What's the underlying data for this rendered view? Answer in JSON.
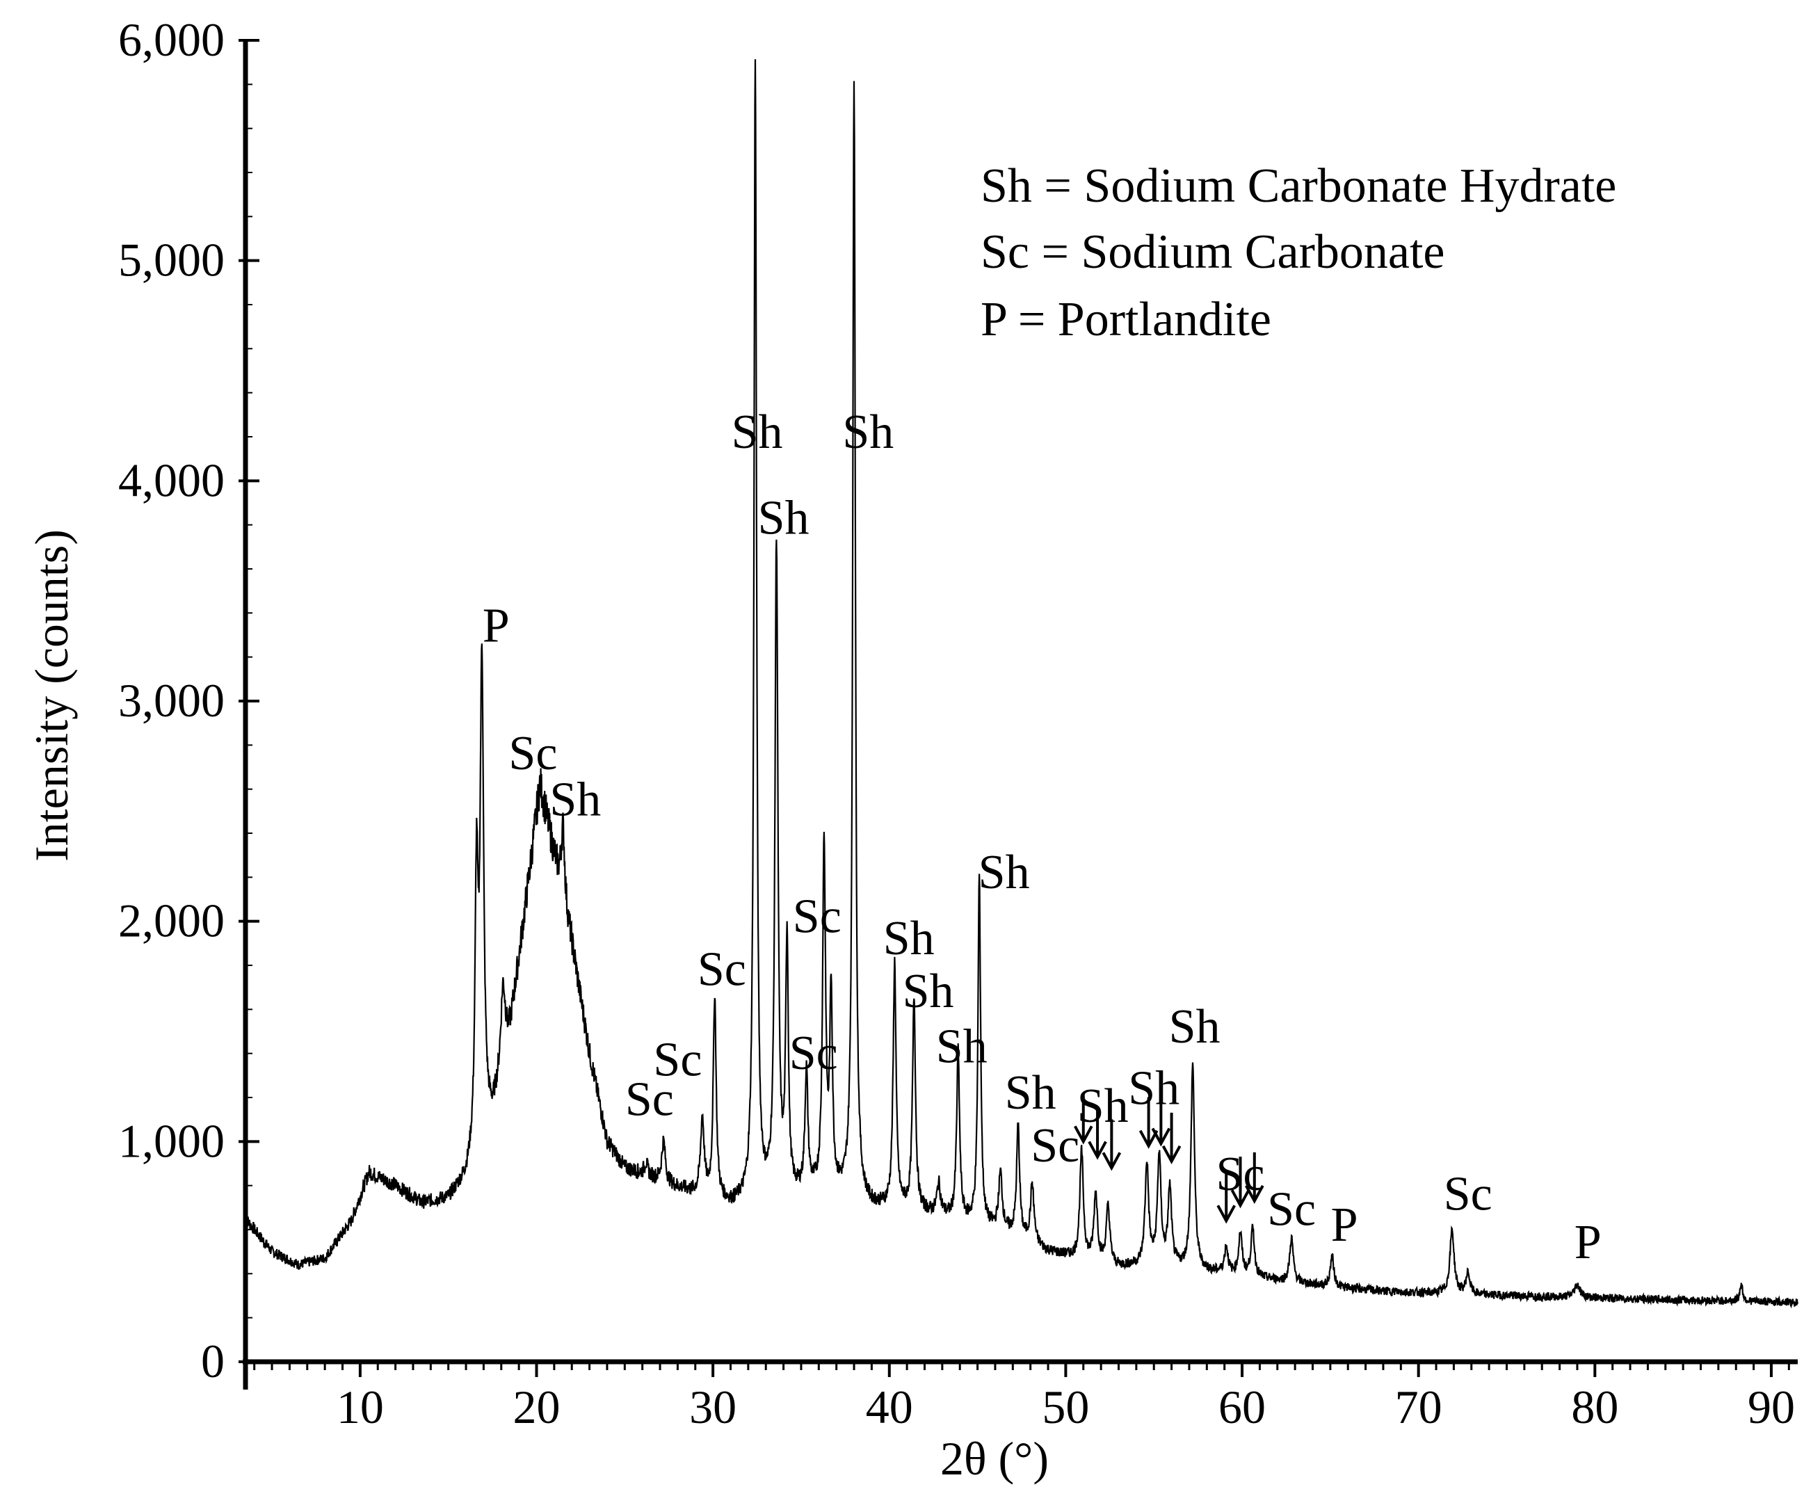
{
  "chart_data": {
    "type": "line",
    "xlabel": "2θ (°)",
    "ylabel": "Intensity (counts)",
    "xlim": [
      3.5,
      91.5
    ],
    "ylim": [
      0,
      6000
    ],
    "x_ticks": [
      10,
      20,
      30,
      40,
      50,
      60,
      70,
      80,
      90
    ],
    "x_tick_labels": [
      "10",
      "20",
      "30",
      "40",
      "50",
      "60",
      "70",
      "80",
      "90"
    ],
    "y_ticks": [
      0,
      1000,
      2000,
      3000,
      4000,
      5000,
      6000
    ],
    "y_tick_labels": [
      "0",
      "1,000",
      "2,000",
      "3,000",
      "4,000",
      "5,000",
      "6,000"
    ],
    "legend_position": "top-right",
    "legend": [
      "Sh = Sodium Carbonate Hydrate",
      "Sc = Sodium Carbonate",
      "P = Portlandite"
    ],
    "baseline": [
      [
        3.5,
        650
      ],
      [
        5,
        500
      ],
      [
        6.5,
        440
      ],
      [
        8,
        470
      ],
      [
        9.5,
        640
      ],
      [
        10.5,
        860
      ],
      [
        12,
        800
      ],
      [
        13.5,
        720
      ],
      [
        15,
        740
      ],
      [
        16,
        830
      ],
      [
        17.5,
        1100
      ],
      [
        18.5,
        1500
      ],
      [
        19.5,
        2150
      ],
      [
        20.2,
        2620
      ],
      [
        21,
        2300
      ],
      [
        22,
        1900
      ],
      [
        23,
        1400
      ],
      [
        24,
        1000
      ],
      [
        25,
        880
      ],
      [
        27,
        820
      ],
      [
        29,
        760
      ],
      [
        31,
        710
      ],
      [
        33,
        730
      ],
      [
        35,
        760
      ],
      [
        37,
        760
      ],
      [
        39,
        700
      ],
      [
        41,
        690
      ],
      [
        43,
        660
      ],
      [
        45,
        620
      ],
      [
        47,
        580
      ],
      [
        49,
        500
      ],
      [
        51,
        460
      ],
      [
        53,
        430
      ],
      [
        55,
        440
      ],
      [
        57,
        420
      ],
      [
        59,
        400
      ],
      [
        61,
        380
      ],
      [
        63,
        360
      ],
      [
        65,
        340
      ],
      [
        68,
        320
      ],
      [
        71,
        310
      ],
      [
        75,
        300
      ],
      [
        80,
        290
      ],
      [
        85,
        280
      ],
      [
        91.5,
        270
      ]
    ],
    "peaks": [
      [
        16.6,
        2150,
        0.1
      ],
      [
        16.9,
        3150,
        0.12
      ],
      [
        18.1,
        1700,
        0.15
      ],
      [
        21.5,
        2430,
        0.12
      ],
      [
        26.2,
        900,
        0.12
      ],
      [
        27.2,
        1000,
        0.12
      ],
      [
        29.4,
        1100,
        0.12
      ],
      [
        30.1,
        1650,
        0.1
      ],
      [
        32.4,
        5900,
        0.09
      ],
      [
        33.6,
        3700,
        0.1
      ],
      [
        34.2,
        1900,
        0.09
      ],
      [
        35.3,
        1300,
        0.1
      ],
      [
        36.3,
        2340,
        0.1
      ],
      [
        36.7,
        1650,
        0.09
      ],
      [
        38.0,
        5800,
        0.09
      ],
      [
        40.3,
        1800,
        0.1
      ],
      [
        41.4,
        1650,
        0.1
      ],
      [
        42.8,
        800,
        0.12
      ],
      [
        43.9,
        1400,
        0.1
      ],
      [
        45.1,
        2200,
        0.09
      ],
      [
        46.3,
        850,
        0.12
      ],
      [
        47.3,
        1070,
        0.1
      ],
      [
        48.1,
        800,
        0.12
      ],
      [
        50.9,
        950,
        0.12
      ],
      [
        51.7,
        760,
        0.12
      ],
      [
        52.4,
        700,
        0.12
      ],
      [
        54.6,
        900,
        0.12
      ],
      [
        55.3,
        930,
        0.12
      ],
      [
        55.9,
        780,
        0.12
      ],
      [
        57.2,
        1350,
        0.12
      ],
      [
        59.1,
        520,
        0.12
      ],
      [
        59.9,
        580,
        0.12
      ],
      [
        60.6,
        600,
        0.12
      ],
      [
        62.8,
        560,
        0.12
      ],
      [
        65.1,
        480,
        0.12
      ],
      [
        71.9,
        600,
        0.14
      ],
      [
        72.8,
        400,
        0.14
      ],
      [
        79.0,
        350,
        0.2
      ],
      [
        88.3,
        350,
        0.1
      ]
    ],
    "labels": [
      {
        "text": "P",
        "x": 17.7,
        "y": 3270
      },
      {
        "text": "Sc",
        "x": 19.8,
        "y": 2690
      },
      {
        "text": "Sh",
        "x": 22.2,
        "y": 2480
      },
      {
        "text": "Sc",
        "x": 26.4,
        "y": 1120
      },
      {
        "text": "Sc",
        "x": 28.0,
        "y": 1300
      },
      {
        "text": "Sc",
        "x": 30.5,
        "y": 1710
      },
      {
        "text": "Sh",
        "x": 32.5,
        "y": 4150
      },
      {
        "text": "Sh",
        "x": 34.0,
        "y": 3760
      },
      {
        "text": "Sc",
        "x": 35.9,
        "y": 1950
      },
      {
        "text": "Sc",
        "x": 35.7,
        "y": 1330
      },
      {
        "text": "Sh",
        "x": 38.8,
        "y": 4150
      },
      {
        "text": "Sh",
        "x": 41.1,
        "y": 1850
      },
      {
        "text": "Sh",
        "x": 42.2,
        "y": 1610
      },
      {
        "text": "Sh",
        "x": 44.1,
        "y": 1360
      },
      {
        "text": "Sh",
        "x": 46.5,
        "y": 2150
      },
      {
        "text": "Sh",
        "x": 48.0,
        "y": 1150
      },
      {
        "text": "Sc",
        "x": 49.4,
        "y": 910
      },
      {
        "text": "Sh",
        "x": 52.1,
        "y": 1090
      },
      {
        "text": "Sh",
        "x": 55.0,
        "y": 1170
      },
      {
        "text": "Sh",
        "x": 57.3,
        "y": 1450
      },
      {
        "text": "Sc",
        "x": 59.9,
        "y": 780
      },
      {
        "text": "Sc",
        "x": 62.8,
        "y": 620
      },
      {
        "text": "P",
        "x": 65.8,
        "y": 550
      },
      {
        "text": "Sc",
        "x": 72.8,
        "y": 690
      },
      {
        "text": "P",
        "x": 79.6,
        "y": 470
      }
    ],
    "arrows": [
      {
        "x": 51.0,
        "y": 1000
      },
      {
        "x": 51.8,
        "y": 930
      },
      {
        "x": 52.6,
        "y": 880
      },
      {
        "x": 54.7,
        "y": 980
      },
      {
        "x": 55.4,
        "y": 990
      },
      {
        "x": 56.0,
        "y": 910
      },
      {
        "x": 59.1,
        "y": 640
      },
      {
        "x": 59.9,
        "y": 710
      },
      {
        "x": 60.7,
        "y": 730
      }
    ]
  }
}
